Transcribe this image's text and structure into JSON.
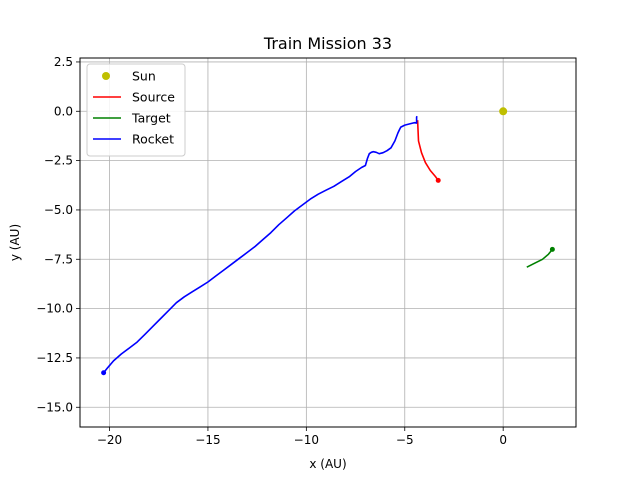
{
  "chart_data": {
    "type": "line",
    "title": "Train Mission 33",
    "xlabel": "x (AU)",
    "ylabel": "y (AU)",
    "xlim": [
      -21.5,
      3.7
    ],
    "ylim": [
      -16.0,
      2.7
    ],
    "xticks": [
      -20,
      -15,
      -10,
      -5,
      0
    ],
    "xtick_labels": [
      "−20",
      "−15",
      "−10",
      "−5",
      "0"
    ],
    "yticks": [
      2.5,
      0.0,
      -2.5,
      -5.0,
      -7.5,
      -10.0,
      -12.5,
      -15.0
    ],
    "ytick_labels": [
      "2.5",
      "0.0",
      "−2.5",
      "−5.0",
      "−7.5",
      "−10.0",
      "−12.5",
      "−15.0"
    ],
    "grid": true,
    "legend_position": "top-left",
    "series": [
      {
        "name": "Sun",
        "style": "marker",
        "color": "#bfbf00",
        "x": [
          0.0
        ],
        "y": [
          0.0
        ]
      },
      {
        "name": "Source",
        "style": "line",
        "color": "#ff0000",
        "end_marker": true,
        "x": [
          -4.35,
          -4.3,
          -4.15,
          -3.95,
          -3.7,
          -3.45,
          -3.3
        ],
        "y": [
          -0.45,
          -1.5,
          -2.1,
          -2.6,
          -3.0,
          -3.3,
          -3.5
        ]
      },
      {
        "name": "Target",
        "style": "line",
        "color": "#008000",
        "end_marker": true,
        "x": [
          1.2,
          1.6,
          2.0,
          2.3,
          2.5
        ],
        "y": [
          -7.9,
          -7.7,
          -7.5,
          -7.25,
          -7.0
        ]
      },
      {
        "name": "Rocket",
        "style": "line",
        "color": "#0000ff",
        "start_marker": true,
        "x": [
          -20.3,
          -20.1,
          -19.8,
          -19.4,
          -19.0,
          -18.6,
          -18.2,
          -17.8,
          -17.4,
          -17.0,
          -16.6,
          -16.2,
          -15.8,
          -15.4,
          -15.0,
          -14.6,
          -14.2,
          -13.8,
          -13.4,
          -13.0,
          -12.6,
          -12.2,
          -11.8,
          -11.4,
          -11.0,
          -10.6,
          -10.2,
          -9.8,
          -9.4,
          -9.0,
          -8.6,
          -8.2,
          -7.8,
          -7.5,
          -7.2,
          -7.0,
          -6.9,
          -6.8,
          -6.7,
          -6.6,
          -6.45,
          -6.3,
          -6.1,
          -5.9,
          -5.7,
          -5.5,
          -5.35,
          -5.25,
          -5.2,
          -5.1,
          -5.0,
          -4.8,
          -4.6,
          -4.5,
          -4.4,
          -4.4,
          -4.38
        ],
        "y": [
          -13.25,
          -13.0,
          -12.65,
          -12.3,
          -12.0,
          -11.7,
          -11.3,
          -10.9,
          -10.5,
          -10.1,
          -9.7,
          -9.4,
          -9.15,
          -8.9,
          -8.65,
          -8.35,
          -8.05,
          -7.75,
          -7.45,
          -7.15,
          -6.85,
          -6.5,
          -6.15,
          -5.75,
          -5.4,
          -5.05,
          -4.75,
          -4.45,
          -4.2,
          -4.0,
          -3.8,
          -3.55,
          -3.3,
          -3.05,
          -2.85,
          -2.75,
          -2.4,
          -2.15,
          -2.08,
          -2.05,
          -2.08,
          -2.15,
          -2.1,
          -2.0,
          -1.85,
          -1.5,
          -1.1,
          -0.9,
          -0.8,
          -0.75,
          -0.7,
          -0.65,
          -0.6,
          -0.58,
          -0.6,
          -0.3,
          -0.25
        ]
      }
    ]
  }
}
